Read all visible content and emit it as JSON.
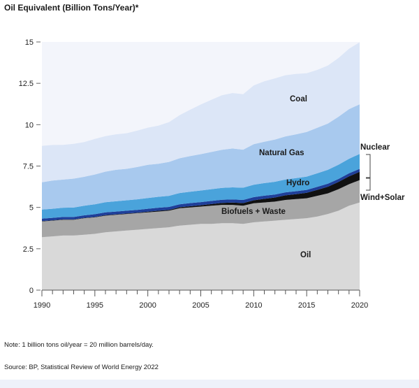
{
  "chart_data": {
    "type": "area",
    "title": "Oil Equivalent (Billion Tons/Year)*",
    "x": [
      1990,
      1991,
      1992,
      1993,
      1994,
      1995,
      1996,
      1997,
      1998,
      1999,
      2000,
      2001,
      2002,
      2003,
      2004,
      2005,
      2006,
      2007,
      2008,
      2009,
      2010,
      2011,
      2012,
      2013,
      2014,
      2015,
      2016,
      2017,
      2018,
      2019,
      2020
    ],
    "xlim": [
      1990,
      2020
    ],
    "ylim": [
      0,
      15
    ],
    "x_ticks": [
      1990,
      1995,
      2000,
      2005,
      2010,
      2015,
      2020
    ],
    "y_ticks": [
      0,
      2.5,
      5,
      7.5,
      10,
      12.5,
      15
    ],
    "y_tick_labels": [
      "0",
      "2.5",
      "5",
      "7.5",
      "10",
      "12.5",
      "15"
    ],
    "series": [
      {
        "name": "Oil",
        "color": "#d9d9d9",
        "values": [
          3.2,
          3.25,
          3.3,
          3.3,
          3.35,
          3.4,
          3.5,
          3.55,
          3.6,
          3.65,
          3.7,
          3.75,
          3.8,
          3.9,
          3.95,
          4.0,
          4.0,
          4.05,
          4.05,
          4.0,
          4.1,
          4.15,
          4.2,
          4.25,
          4.3,
          4.35,
          4.45,
          4.6,
          4.8,
          5.1,
          5.3
        ]
      },
      {
        "name": "Biofuels + Waste",
        "color": "#a6a6a6",
        "values": [
          0.95,
          0.95,
          0.95,
          0.95,
          1.0,
          1.0,
          1.0,
          1.0,
          1.0,
          1.0,
          1.0,
          1.0,
          1.0,
          1.05,
          1.05,
          1.05,
          1.1,
          1.1,
          1.1,
          1.1,
          1.15,
          1.15,
          1.15,
          1.2,
          1.2,
          1.2,
          1.25,
          1.25,
          1.3,
          1.3,
          1.35
        ]
      },
      {
        "name": "Wind+Solar",
        "color": "#111111",
        "values": [
          0.02,
          0.02,
          0.02,
          0.02,
          0.02,
          0.02,
          0.03,
          0.03,
          0.03,
          0.03,
          0.04,
          0.05,
          0.05,
          0.06,
          0.07,
          0.08,
          0.1,
          0.12,
          0.14,
          0.16,
          0.18,
          0.22,
          0.25,
          0.28,
          0.3,
          0.33,
          0.36,
          0.4,
          0.44,
          0.48,
          0.5
        ]
      },
      {
        "name": "Nuclear",
        "color": "#1f3f99",
        "values": [
          0.15,
          0.15,
          0.15,
          0.15,
          0.15,
          0.17,
          0.17,
          0.17,
          0.17,
          0.17,
          0.18,
          0.18,
          0.18,
          0.18,
          0.19,
          0.19,
          0.19,
          0.19,
          0.19,
          0.19,
          0.19,
          0.19,
          0.18,
          0.18,
          0.18,
          0.18,
          0.18,
          0.18,
          0.18,
          0.18,
          0.18
        ]
      },
      {
        "name": "Hydro",
        "color": "#4aa3db",
        "values": [
          0.55,
          0.55,
          0.56,
          0.57,
          0.58,
          0.6,
          0.61,
          0.62,
          0.63,
          0.64,
          0.65,
          0.66,
          0.67,
          0.68,
          0.69,
          0.7,
          0.71,
          0.72,
          0.73,
          0.74,
          0.75,
          0.76,
          0.77,
          0.78,
          0.79,
          0.8,
          0.82,
          0.84,
          0.86,
          0.88,
          0.9
        ]
      },
      {
        "name": "Natural Gas",
        "color": "#a8c9ee",
        "values": [
          1.65,
          1.7,
          1.7,
          1.75,
          1.75,
          1.8,
          1.85,
          1.9,
          1.9,
          1.95,
          2.0,
          2.0,
          2.05,
          2.1,
          2.15,
          2.2,
          2.25,
          2.3,
          2.35,
          2.3,
          2.45,
          2.5,
          2.55,
          2.6,
          2.65,
          2.7,
          2.75,
          2.8,
          2.9,
          3.0,
          3.0
        ]
      },
      {
        "name": "Coal",
        "color": "#dce6f7",
        "values": [
          2.2,
          2.15,
          2.1,
          2.1,
          2.1,
          2.15,
          2.15,
          2.15,
          2.15,
          2.2,
          2.25,
          2.3,
          2.4,
          2.6,
          2.8,
          3.0,
          3.15,
          3.3,
          3.35,
          3.35,
          3.55,
          3.65,
          3.7,
          3.7,
          3.65,
          3.55,
          3.5,
          3.5,
          3.55,
          3.65,
          3.75
        ]
      }
    ],
    "labels": {
      "coal": "Coal",
      "gas": "Natural Gas",
      "hydro": "Hydro",
      "nuclear": "Nuclear",
      "windsolar": "Wind+Solar",
      "bio": "Biofuels + Waste",
      "oil": "Oil"
    }
  },
  "notes": {
    "note": "Note: 1 billion tons oil/year = 20 million barrels/day.",
    "source": "Source: BP, Statistical Review of World Energy 2022"
  }
}
